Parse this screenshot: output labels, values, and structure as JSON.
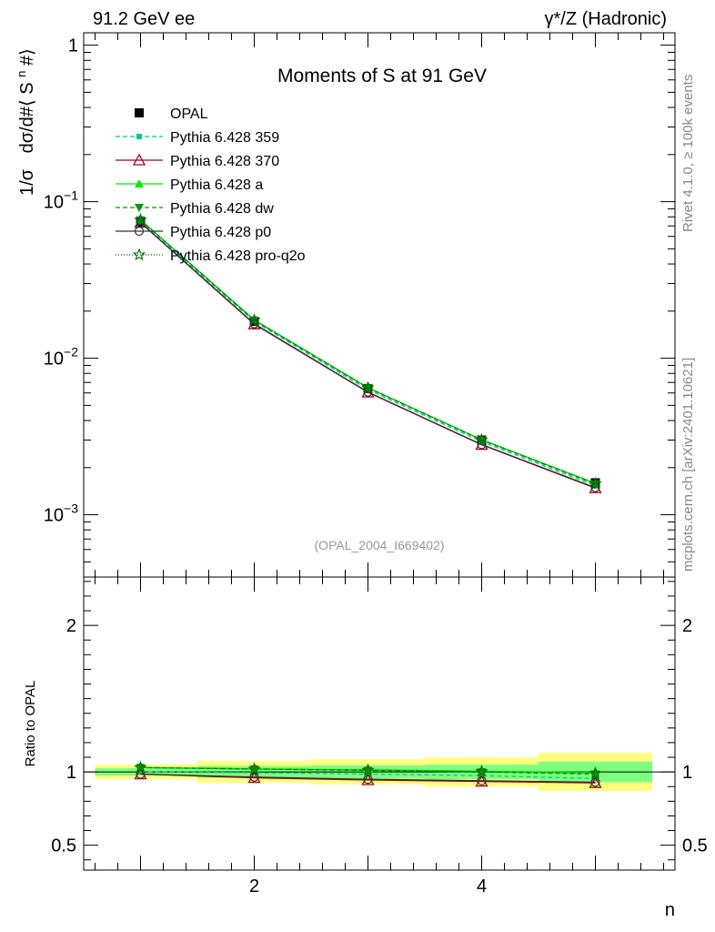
{
  "header": {
    "left": "91.2 GeV ee",
    "right": "γ*/Z (Hadronic)"
  },
  "side": {
    "rivet": "Rivet 4.1.0, ≥ 100k events",
    "mcplots": "mcplots.cern.ch [arXiv:2401.10621]"
  },
  "colors": {
    "opal": "#000000",
    "p359": "#00cc88",
    "p370": "#a50021",
    "pa": "#00ee00",
    "pdw": "#009900",
    "pp0": "#333333",
    "ppro": "#006600",
    "band_green": "#7fff7f",
    "band_yellow": "#ffff7f"
  },
  "chart_data": [
    {
      "type": "line",
      "title": "Moments of S at 91 GeV",
      "ylabel": "1/σ  dσ/d#⟨ Sⁿ #⟩",
      "ylabel_parts": [
        "1/σ",
        "dσ/d#⟨ S",
        "n",
        " #⟩"
      ],
      "yscale": "log",
      "ylim": [
        0.0004,
        1.2
      ],
      "xlim": [
        0.5,
        5.7
      ],
      "x": [
        1,
        2,
        3,
        4,
        5
      ],
      "yticks": [
        {
          "value": 1,
          "mant": "1",
          "exp": ""
        },
        {
          "value": 0.1,
          "mant": "10",
          "exp": "−1"
        },
        {
          "value": 0.01,
          "mant": "10",
          "exp": "−2"
        },
        {
          "value": 0.001,
          "mant": "10",
          "exp": "−3"
        }
      ],
      "watermark": "(OPAL_2004_I669402)",
      "series": [
        {
          "key": "opal",
          "name": "OPAL",
          "values": [
            0.0745,
            0.0172,
            0.0064,
            0.003,
            0.0016
          ]
        },
        {
          "key": "p359",
          "name": "Pythia 6.428 359",
          "values": [
            0.0745,
            0.0172,
            0.0063,
            0.00293,
            0.00153
          ]
        },
        {
          "key": "p370",
          "name": "Pythia 6.428 370",
          "values": [
            0.0735,
            0.0165,
            0.00605,
            0.0028,
            0.00148
          ]
        },
        {
          "key": "pa",
          "name": "Pythia 6.428 a",
          "values": [
            0.0765,
            0.0176,
            0.0065,
            0.00302,
            0.00159
          ]
        },
        {
          "key": "pdw",
          "name": "Pythia 6.428 dw",
          "values": [
            0.0765,
            0.0175,
            0.00645,
            0.003,
            0.00157
          ]
        },
        {
          "key": "pp0",
          "name": "Pythia 6.428 p0",
          "values": [
            0.0735,
            0.0166,
            0.00608,
            0.00281,
            0.00149
          ]
        },
        {
          "key": "ppro",
          "name": "Pythia 6.428 pro-q2o",
          "values": [
            0.0765,
            0.0175,
            0.00648,
            0.00301,
            0.00158
          ]
        }
      ]
    },
    {
      "type": "line",
      "ylabel": "Ratio to OPAL",
      "xlabel": "n",
      "ylim": [
        0.33,
        2.33
      ],
      "xlim": [
        0.5,
        5.7
      ],
      "x": [
        1,
        2,
        3,
        4,
        5
      ],
      "xticks": [
        "2",
        "4"
      ],
      "xtick_values": [
        2,
        4
      ],
      "yticks": [
        "0.5",
        "1",
        "2"
      ],
      "ytick_values": [
        0.5,
        1,
        2
      ],
      "bands": {
        "edges": [
          0.6,
          1.5,
          2.5,
          3.5,
          4.5,
          5.5
        ],
        "green": [
          [
            0.975,
            1.025
          ],
          [
            0.96,
            1.04
          ],
          [
            0.955,
            1.045
          ],
          [
            0.95,
            1.05
          ],
          [
            0.93,
            1.07
          ]
        ],
        "yellow": [
          [
            0.95,
            1.05
          ],
          [
            0.925,
            1.075
          ],
          [
            0.915,
            1.085
          ],
          [
            0.9,
            1.1
          ],
          [
            0.87,
            1.13
          ]
        ]
      },
      "series": [
        {
          "key": "opal",
          "name": "OPAL",
          "values": [
            1,
            1,
            1,
            1,
            1
          ]
        },
        {
          "key": "p359",
          "name": "Pythia 6.428 359",
          "values": [
            1.0,
            0.995,
            0.985,
            0.975,
            0.955
          ]
        },
        {
          "key": "p370",
          "name": "Pythia 6.428 370",
          "values": [
            0.985,
            0.96,
            0.945,
            0.935,
            0.925
          ]
        },
        {
          "key": "pa",
          "name": "Pythia 6.428 a",
          "values": [
            1.03,
            1.02,
            1.015,
            1.005,
            0.995
          ]
        },
        {
          "key": "pdw",
          "name": "Pythia 6.428 dw",
          "values": [
            1.03,
            1.02,
            1.01,
            1.0,
            0.985
          ]
        },
        {
          "key": "pp0",
          "name": "Pythia 6.428 p0",
          "values": [
            0.985,
            0.965,
            0.95,
            0.94,
            0.93
          ]
        },
        {
          "key": "ppro",
          "name": "Pythia 6.428 pro-q2o",
          "values": [
            1.03,
            1.02,
            1.012,
            1.003,
            0.99
          ]
        }
      ]
    }
  ]
}
